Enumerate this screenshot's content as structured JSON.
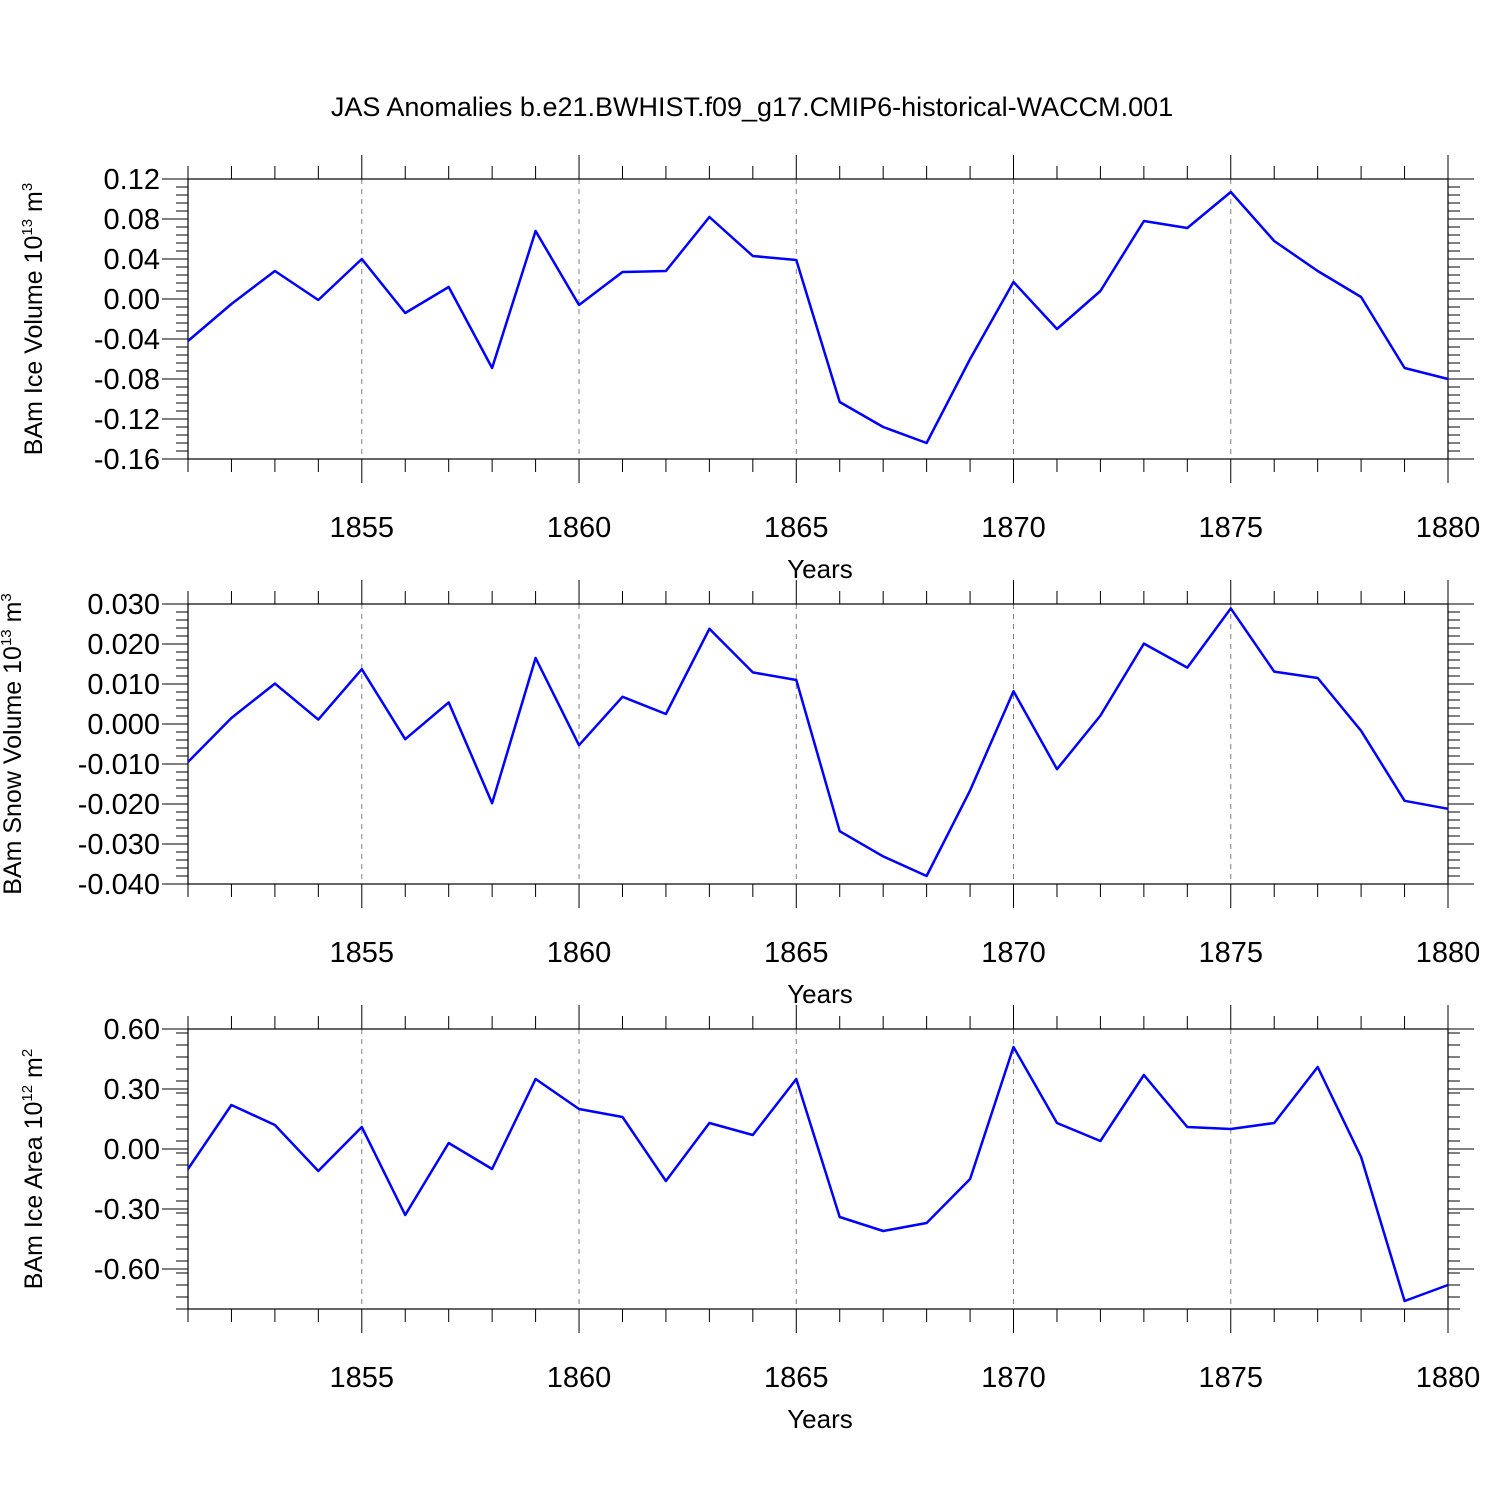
{
  "title": "JAS Anomalies b.e21.BWHIST.f09_g17.CMIP6-historical-WACCM.001",
  "colors": {
    "line": "#0000ff",
    "axis": "#000000",
    "grid": "#808080"
  },
  "chart_data": [
    {
      "type": "line",
      "ylabel": {
        "main": "BAm Ice Volume 10",
        "exp": "13",
        "unit": " m",
        "unit_exp": "3"
      },
      "xlabel": "Years",
      "xlim": [
        1851,
        1880
      ],
      "ylim": [
        -0.16,
        0.12
      ],
      "yticks": [
        "0.12",
        "0.08",
        "0.04",
        "0.00",
        "-0.04",
        "-0.08",
        "-0.12",
        "-0.16"
      ],
      "ytick_values": [
        0.12,
        0.08,
        0.04,
        0.0,
        -0.04,
        -0.08,
        -0.12,
        -0.16
      ],
      "xticks": [
        "1855",
        "1860",
        "1865",
        "1870",
        "1875",
        "1880"
      ],
      "xtick_values": [
        1855,
        1860,
        1865,
        1870,
        1875,
        1880
      ],
      "grid_x": [
        1855,
        1860,
        1865,
        1870,
        1875
      ],
      "x": [
        1851,
        1852,
        1853,
        1854,
        1855,
        1856,
        1857,
        1858,
        1859,
        1860,
        1861,
        1862,
        1863,
        1864,
        1865,
        1866,
        1867,
        1868,
        1869,
        1870,
        1871,
        1872,
        1873,
        1874,
        1875,
        1876,
        1877,
        1878,
        1879,
        1880
      ],
      "values": [
        -0.042,
        -0.005,
        0.028,
        -0.001,
        0.04,
        -0.014,
        0.012,
        -0.069,
        0.068,
        -0.006,
        0.027,
        0.028,
        0.082,
        0.043,
        0.039,
        -0.103,
        -0.128,
        -0.144,
        -0.06,
        0.017,
        -0.03,
        0.008,
        0.078,
        0.071,
        0.107,
        0.058,
        0.028,
        0.002,
        -0.069,
        -0.08
      ]
    },
    {
      "type": "line",
      "ylabel": {
        "main": "BAm Snow Volume 10",
        "exp": "13",
        "unit": " m",
        "unit_exp": "3"
      },
      "xlabel": "Years",
      "xlim": [
        1851,
        1880
      ],
      "ylim": [
        -0.04,
        0.03
      ],
      "yticks": [
        "0.030",
        "0.020",
        "0.010",
        "0.000",
        "-0.010",
        "-0.020",
        "-0.030",
        "-0.040"
      ],
      "ytick_values": [
        0.03,
        0.02,
        0.01,
        0.0,
        -0.01,
        -0.02,
        -0.03,
        -0.04
      ],
      "xticks": [
        "1855",
        "1860",
        "1865",
        "1870",
        "1875",
        "1880"
      ],
      "xtick_values": [
        1855,
        1860,
        1865,
        1870,
        1875,
        1880
      ],
      "grid_x": [
        1855,
        1860,
        1865,
        1870,
        1875
      ],
      "x": [
        1851,
        1852,
        1853,
        1854,
        1855,
        1856,
        1857,
        1858,
        1859,
        1860,
        1861,
        1862,
        1863,
        1864,
        1865,
        1866,
        1867,
        1868,
        1869,
        1870,
        1871,
        1872,
        1873,
        1874,
        1875,
        1876,
        1877,
        1878,
        1879,
        1880
      ],
      "values": [
        -0.0095,
        0.0015,
        0.0101,
        0.0011,
        0.0137,
        -0.0038,
        0.0054,
        -0.0198,
        0.0165,
        -0.0053,
        0.0068,
        0.0025,
        0.0238,
        0.0129,
        0.011,
        -0.0268,
        -0.0331,
        -0.038,
        -0.0166,
        0.0082,
        -0.0113,
        0.0021,
        0.0201,
        0.0141,
        0.0289,
        0.0131,
        0.0115,
        -0.0017,
        -0.0192,
        -0.0212
      ]
    },
    {
      "type": "line",
      "ylabel": {
        "main": "BAm Ice Area 10",
        "exp": "12",
        "unit": " m",
        "unit_exp": "2"
      },
      "xlabel": "Years",
      "xlim": [
        1851,
        1880
      ],
      "ylim": [
        -0.8,
        0.6
      ],
      "yticks": [
        "0.60",
        "0.30",
        "0.00",
        "-0.30",
        "-0.60"
      ],
      "ytick_values": [
        0.6,
        0.3,
        0.0,
        -0.3,
        -0.6
      ],
      "xticks": [
        "1855",
        "1860",
        "1865",
        "1870",
        "1875",
        "1880"
      ],
      "xtick_values": [
        1855,
        1860,
        1865,
        1870,
        1875,
        1880
      ],
      "grid_x": [
        1855,
        1860,
        1865,
        1870,
        1875
      ],
      "x": [
        1851,
        1852,
        1853,
        1854,
        1855,
        1856,
        1857,
        1858,
        1859,
        1860,
        1861,
        1862,
        1863,
        1864,
        1865,
        1866,
        1867,
        1868,
        1869,
        1870,
        1871,
        1872,
        1873,
        1874,
        1875,
        1876,
        1877,
        1878,
        1879,
        1880
      ],
      "values": [
        -0.1,
        0.22,
        0.12,
        -0.11,
        0.11,
        -0.33,
        0.03,
        -0.1,
        0.35,
        0.2,
        0.16,
        -0.16,
        0.13,
        0.07,
        0.35,
        -0.34,
        -0.41,
        -0.37,
        -0.15,
        0.51,
        0.13,
        0.04,
        0.37,
        0.11,
        0.1,
        0.13,
        0.41,
        -0.04,
        -0.76,
        -0.68
      ]
    }
  ]
}
